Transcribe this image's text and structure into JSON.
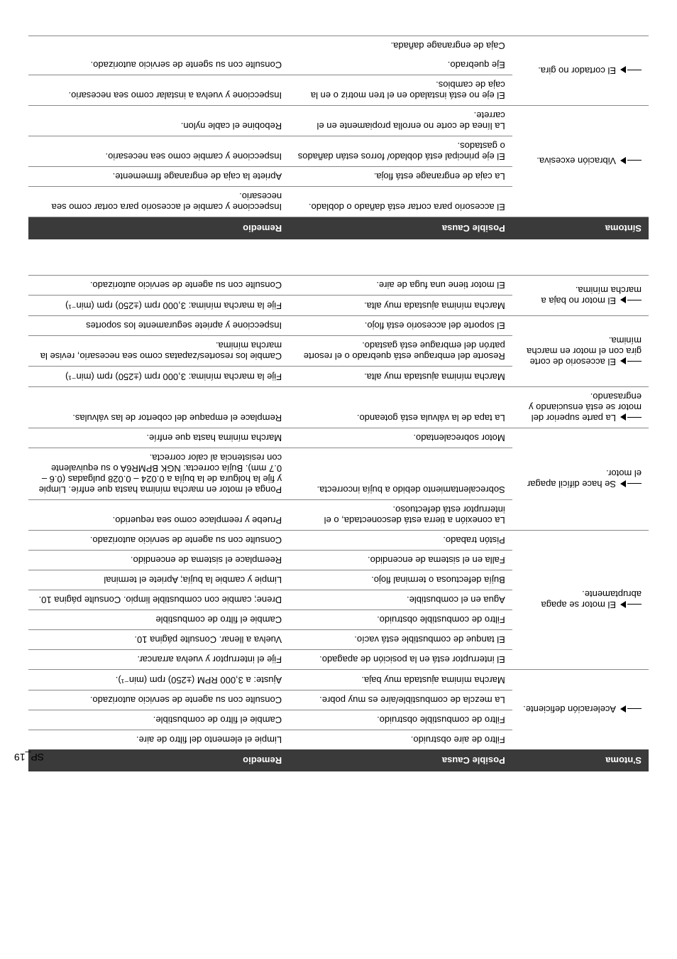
{
  "page_number": "SP_19",
  "headers": {
    "h1": "S'ntoma",
    "h2": "Posible Causa",
    "h3": "Remedio"
  },
  "headers2": {
    "h1": "Síntoma",
    "h2": "Posible Causa",
    "h3": "Remedio"
  },
  "t1": {
    "r1": {
      "symptom": "Aceleración deficiente.",
      "cause": "Filtro de aire obstruido.",
      "remedy": "Limpie el elemento del filtro de aire."
    },
    "r2": {
      "cause": "Filtro de combustible obstruido.",
      "remedy": "Cambie el filtro de combustible."
    },
    "r3": {
      "cause": "La mezcla de combustible/aire es muy pobre.",
      "remedy": "Consulte con su agente de servicio autorizado."
    },
    "r4": {
      "cause": "Marcha mínima ajustada muy baja.",
      "remedy": "Ajuste: a 3,000 RPM (±250) rpm (min⁻¹)."
    },
    "r5": {
      "symptom": "El motor se apaga abruptamente.",
      "cause": "El interruptor está en la posición de apagado.",
      "remedy": "Fije el interruptor y vuelva arrancar."
    },
    "r6": {
      "cause": "El tanque de combustible está vacío.",
      "remedy": "Vuelva a llenar. Consulte página 10."
    },
    "r7": {
      "cause": "Filtro de combustible obstruido.",
      "remedy": "Cambie el filtro de combustible"
    },
    "r8": {
      "cause": "Agua en el combustible.",
      "remedy": "Drene; cambie con combustible limpio. Consulte página 10."
    },
    "r9": {
      "cause": "Bujía defectuosa o terminal flojo.",
      "remedy": "Limpie y cambie la bujía; Apriete el terminal"
    },
    "r10": {
      "cause": "Falla en el sistema de encendido.",
      "remedy": "Reemplace el sistema de encendido."
    },
    "r11": {
      "cause": "Pistón trabado.",
      "remedy": "Consulte con su agente de servicio autorizado."
    },
    "r12": {
      "symptom": "Se hace difícil apagar el motor.",
      "cause": "La conexión a tierra está desconectada, o el interruptor está defectuoso.",
      "remedy": "Pruebe y reemplace como sea requerido."
    },
    "r13": {
      "cause": "Sobrecalentamiento debido a bujía incorrecta.",
      "remedy": "Ponga el motor en marcha mínima hasta que enfríe.  Limpie y  fije la holgura de la bujía a 0.024 – 0.028 pulgadas (0.6 – 0.7 mm). Bujía correcta:  NGK BPMR6A o su equivalente con resistencia al calor correcta."
    },
    "r14": {
      "cause": "Motor sobrecalentado.",
      "remedy": "Marcha mínima hasta que enfríe."
    },
    "r15": {
      "symptom": "La parte superior del motor se está ensuciando y engrasando.",
      "cause": "La tapa de la válvula está goteando.",
      "remedy": "Remplace el empaque del cobertor de las válvulas."
    },
    "r16": {
      "symptom": "El accesorio de corte gira con el motor en marcha mínima.",
      "cause": "Marcha mínima ajustada muy alta.",
      "remedy": "Fije  la marcha mínima: 3,000 rpm (±250) rpm (min⁻¹)"
    },
    "r17": {
      "cause": "Resorte del embrague está quebrado o el resorte patrón del embrague está gastado.",
      "remedy": "Cambie los resortes/zapatas como sea necesario, revise la marcha mínima."
    },
    "r18": {
      "cause": "El soporte del accesorio está flojo.",
      "remedy": "Inspeccione y apriete seguramente los soportes"
    },
    "r19": {
      "symptom": "El motor no baja a marcha mínima.",
      "cause": "Marcha mínima ajustada muy alta.",
      "remedy": "Fije  la marcha mínima: 3,000 rpm (±250) rpm (min⁻¹)"
    },
    "r20": {
      "cause": "El motor tiene una fuga de aire.",
      "remedy": "Consulte con su agente de servicio autorizado."
    }
  },
  "t2": {
    "r1": {
      "symptom": "Vibración excesiva.",
      "cause": "El accesorio para cortar está dañado o doblado.",
      "remedy": "Inspeccione y cambie el accesorio para cortar como sea necesario."
    },
    "r2": {
      "cause": "La caja de engranage está floja.",
      "remedy": "Apriete la caja de engranage firmemente."
    },
    "r3": {
      "cause": "El eje principal está doblado/ forros están dañados o gastados.",
      "remedy": "Inspeccione y cambie como sea necesario."
    },
    "r4": {
      "cause": "La línea de corte no enrolla propiamente en el carrete.",
      "remedy": "Rebobine el cable nylon."
    },
    "r5": {
      "symptom": "El cortador no gira.",
      "cause": "El eje no está instalado en el tren motriz o en la caja de cambios.",
      "remedy": "Inspeccione y vuelva a instalar como sea necesario."
    },
    "r6": {
      "cause": "Eje quebrado.",
      "remedy": "Consulte con su sgente de servicio autorizado."
    },
    "r7": {
      "cause": "Caja de engranage dañada."
    }
  }
}
